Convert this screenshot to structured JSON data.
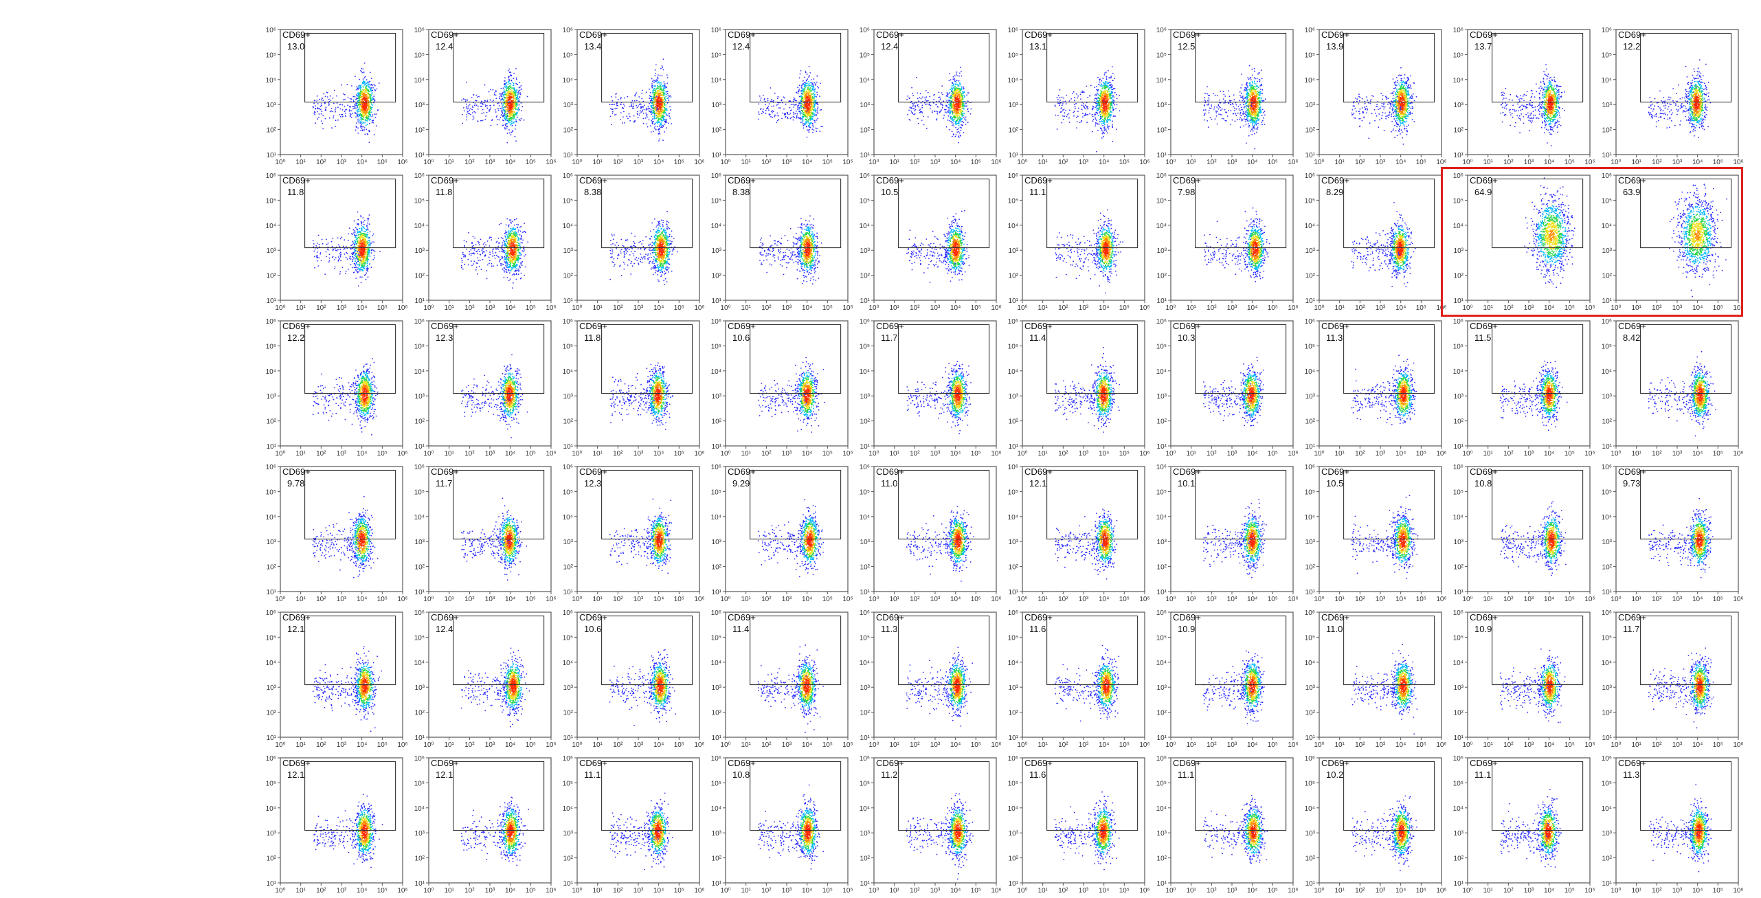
{
  "gate_label": "CD69+",
  "axis": {
    "x_tick_labels": [
      "10⁰",
      "10¹",
      "10²",
      "10³",
      "10⁴",
      "10⁵",
      "10⁶"
    ],
    "y_tick_labels": [
      "10¹",
      "10²",
      "10³",
      "10⁴",
      "10⁵",
      "10⁶"
    ]
  },
  "colors": {
    "highlight": "#e0201b",
    "density": [
      "#2b2bff",
      "#00b7ff",
      "#2bd64a",
      "#f0e020",
      "#ff8a00",
      "#ff2b00"
    ]
  },
  "chart_data": {
    "type": "scatter",
    "description_of_layout": "6 rows x 10 columns of flow cytometry density dot plots, each with a CD69+ gate and percentage",
    "rows": [
      {
        "values": [
          "13.0",
          "12.4",
          "13.4",
          "12.4",
          "12.4",
          "13.1",
          "12.5",
          "13.9",
          "13.7",
          "12.2"
        ]
      },
      {
        "values": [
          "11.8",
          "11.8",
          "8.38",
          "8.38",
          "10.5",
          "11.1",
          "7.98",
          "8.29",
          "64.9",
          "63.9"
        ]
      },
      {
        "values": [
          "12.2",
          "12.3",
          "11.8",
          "10.6",
          "11.7",
          "11.4",
          "10.3",
          "11.3",
          "11.5",
          "8.42"
        ]
      },
      {
        "values": [
          "9.78",
          "11.7",
          "12.3",
          "9.29",
          "11.0",
          "12.1",
          "10.1",
          "10.5",
          "10.8",
          "9.73"
        ]
      },
      {
        "values": [
          "12.1",
          "12.4",
          "10.6",
          "11.4",
          "11.3",
          "11.6",
          "10.9",
          "11.0",
          "10.9",
          "11.7"
        ]
      },
      {
        "values": [
          "12.1",
          "12.1",
          "11.1",
          "10.8",
          "11.2",
          "11.6",
          "11.1",
          "10.2",
          "11.1",
          "11.3"
        ]
      }
    ],
    "highlighted": {
      "row": 1,
      "cols": [
        8,
        9
      ]
    },
    "x_scale": "log",
    "y_scale": "log",
    "xlim": [
      1,
      1000000
    ],
    "ylim": [
      10,
      1000000
    ],
    "grid": false
  }
}
